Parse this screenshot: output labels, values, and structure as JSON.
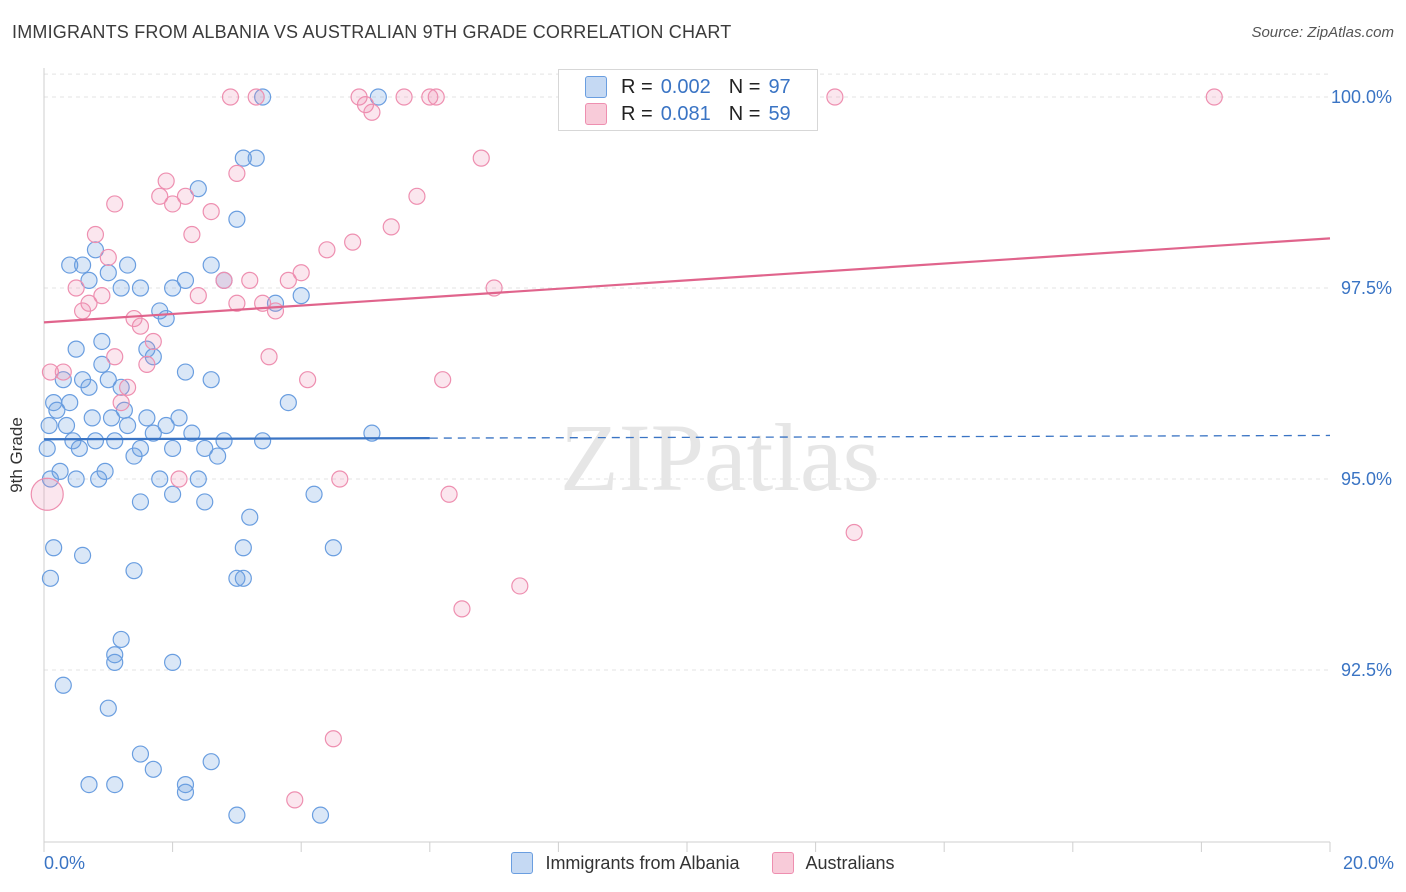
{
  "title": "IMMIGRANTS FROM ALBANIA VS AUSTRALIAN 9TH GRADE CORRELATION CHART",
  "source": "Source: ZipAtlas.com",
  "watermark": "ZIPatlas",
  "legend_top": [
    {
      "r_label": "R =",
      "r_value": "0.002",
      "n_label": "N =",
      "n_value": "97"
    },
    {
      "r_label": "R =",
      "r_value": "0.081",
      "n_label": "N =",
      "n_value": "59"
    }
  ],
  "chart_data": {
    "type": "scatter",
    "title": "IMMIGRANTS FROM ALBANIA VS AUSTRALIAN 9TH GRADE CORRELATION CHART",
    "xlabel": "",
    "ylabel": "9th Grade",
    "xlim": [
      0,
      20
    ],
    "ylim": [
      90.0,
      100.3
    ],
    "x_tick_labels": [
      "0.0%",
      "20.0%"
    ],
    "y_ticks": [
      92.5,
      95.0,
      97.5,
      100.0
    ],
    "y_tick_labels": [
      "92.5%",
      "95.0%",
      "97.5%",
      "100.0%"
    ],
    "colors": {
      "albania": "#6a9ee0",
      "australians": "#ee8fb0",
      "albania_line": "#3a74c4",
      "australians_line": "#e0648c"
    },
    "series": [
      {
        "name": "Immigrants from Albania",
        "R": 0.002,
        "N": 97,
        "trend": {
          "x0": 0,
          "y0": 95.52,
          "x1": 20,
          "y1": 95.57,
          "solid_until_x": 6.0
        },
        "points": [
          [
            0.05,
            95.4
          ],
          [
            0.08,
            95.7
          ],
          [
            0.1,
            95.0
          ],
          [
            0.15,
            96.0
          ],
          [
            0.2,
            95.9
          ],
          [
            0.25,
            95.1
          ],
          [
            0.3,
            96.3
          ],
          [
            0.35,
            95.7
          ],
          [
            0.4,
            96.0
          ],
          [
            0.45,
            95.5
          ],
          [
            0.5,
            95.0
          ],
          [
            0.55,
            95.4
          ],
          [
            0.6,
            96.3
          ],
          [
            0.7,
            96.2
          ],
          [
            0.75,
            95.8
          ],
          [
            0.8,
            95.5
          ],
          [
            0.85,
            95.0
          ],
          [
            0.9,
            96.5
          ],
          [
            0.95,
            95.1
          ],
          [
            1.0,
            96.3
          ],
          [
            1.05,
            95.8
          ],
          [
            1.1,
            95.5
          ],
          [
            1.2,
            96.2
          ],
          [
            1.25,
            95.9
          ],
          [
            1.3,
            95.7
          ],
          [
            1.4,
            95.3
          ],
          [
            1.5,
            95.4
          ],
          [
            1.6,
            95.8
          ],
          [
            1.7,
            95.6
          ],
          [
            1.8,
            95.0
          ],
          [
            1.9,
            95.7
          ],
          [
            2.0,
            95.4
          ],
          [
            2.1,
            95.8
          ],
          [
            2.2,
            96.4
          ],
          [
            2.3,
            95.6
          ],
          [
            2.4,
            95.0
          ],
          [
            2.5,
            95.4
          ],
          [
            2.6,
            96.3
          ],
          [
            2.7,
            95.3
          ],
          [
            2.8,
            95.5
          ],
          [
            0.4,
            97.8
          ],
          [
            0.6,
            97.8
          ],
          [
            0.7,
            97.6
          ],
          [
            0.8,
            98.0
          ],
          [
            1.0,
            97.7
          ],
          [
            1.2,
            97.5
          ],
          [
            1.3,
            97.8
          ],
          [
            1.5,
            97.5
          ],
          [
            1.6,
            96.7
          ],
          [
            1.7,
            96.6
          ],
          [
            1.8,
            97.2
          ],
          [
            1.9,
            97.1
          ],
          [
            2.0,
            97.5
          ],
          [
            2.2,
            97.6
          ],
          [
            2.4,
            98.8
          ],
          [
            2.6,
            97.8
          ],
          [
            2.8,
            97.6
          ],
          [
            3.1,
            99.2
          ],
          [
            3.3,
            99.2
          ],
          [
            3.4,
            100.0
          ],
          [
            3.0,
            98.4
          ],
          [
            3.6,
            97.3
          ],
          [
            3.8,
            96.0
          ],
          [
            4.0,
            97.4
          ],
          [
            2.5,
            94.7
          ],
          [
            1.5,
            94.7
          ],
          [
            2.0,
            94.8
          ],
          [
            3.2,
            94.5
          ],
          [
            3.1,
            94.1
          ],
          [
            4.2,
            94.8
          ],
          [
            4.5,
            94.1
          ],
          [
            3.4,
            95.5
          ],
          [
            0.1,
            93.7
          ],
          [
            0.15,
            94.1
          ],
          [
            0.6,
            94.0
          ],
          [
            1.4,
            93.8
          ],
          [
            3.0,
            93.7
          ],
          [
            3.1,
            93.7
          ],
          [
            1.2,
            92.9
          ],
          [
            1.1,
            92.6
          ],
          [
            1.1,
            92.7
          ],
          [
            0.3,
            92.3
          ],
          [
            2.0,
            92.6
          ],
          [
            1.0,
            92.0
          ],
          [
            1.5,
            91.4
          ],
          [
            1.7,
            91.2
          ],
          [
            0.7,
            91.0
          ],
          [
            1.1,
            91.0
          ],
          [
            2.2,
            91.0
          ],
          [
            2.2,
            90.9
          ],
          [
            2.6,
            91.3
          ],
          [
            3.0,
            90.6
          ],
          [
            4.3,
            90.6
          ],
          [
            5.1,
            95.6
          ],
          [
            5.2,
            100.0
          ],
          [
            0.5,
            96.7
          ],
          [
            0.9,
            96.8
          ]
        ]
      },
      {
        "name": "Australians",
        "R": 0.081,
        "N": 59,
        "trend": {
          "x0": 0,
          "y0": 97.05,
          "x1": 20,
          "y1": 98.15
        },
        "points": [
          [
            0.05,
            94.8
          ],
          [
            0.1,
            96.4
          ],
          [
            0.3,
            96.4
          ],
          [
            0.5,
            97.5
          ],
          [
            0.6,
            97.2
          ],
          [
            0.7,
            97.3
          ],
          [
            0.8,
            98.2
          ],
          [
            0.9,
            97.4
          ],
          [
            1.0,
            97.9
          ],
          [
            1.1,
            96.6
          ],
          [
            1.2,
            96.0
          ],
          [
            1.3,
            96.2
          ],
          [
            1.4,
            97.1
          ],
          [
            1.5,
            97.0
          ],
          [
            1.6,
            96.5
          ],
          [
            1.7,
            96.8
          ],
          [
            1.8,
            98.7
          ],
          [
            1.9,
            98.9
          ],
          [
            2.0,
            98.6
          ],
          [
            2.2,
            98.7
          ],
          [
            2.3,
            98.2
          ],
          [
            2.4,
            97.4
          ],
          [
            2.6,
            98.5
          ],
          [
            2.8,
            97.6
          ],
          [
            3.0,
            97.3
          ],
          [
            3.2,
            97.6
          ],
          [
            3.4,
            97.3
          ],
          [
            3.5,
            96.6
          ],
          [
            3.6,
            97.2
          ],
          [
            3.8,
            97.6
          ],
          [
            4.0,
            97.7
          ],
          [
            4.1,
            96.3
          ],
          [
            4.4,
            98.0
          ],
          [
            4.6,
            95.0
          ],
          [
            4.8,
            98.1
          ],
          [
            4.9,
            100.0
          ],
          [
            5.0,
            99.9
          ],
          [
            5.1,
            99.8
          ],
          [
            5.4,
            98.3
          ],
          [
            5.6,
            100.0
          ],
          [
            5.8,
            98.7
          ],
          [
            6.0,
            100.0
          ],
          [
            6.1,
            100.0
          ],
          [
            6.2,
            96.3
          ],
          [
            6.3,
            94.8
          ],
          [
            6.5,
            93.3
          ],
          [
            6.8,
            99.2
          ],
          [
            7.0,
            97.5
          ],
          [
            7.4,
            93.6
          ],
          [
            1.1,
            98.6
          ],
          [
            3.0,
            99.0
          ],
          [
            2.9,
            100.0
          ],
          [
            3.3,
            100.0
          ],
          [
            12.3,
            100.0
          ],
          [
            12.6,
            94.3
          ],
          [
            18.2,
            100.0
          ],
          [
            4.5,
            91.6
          ],
          [
            3.9,
            90.8
          ],
          [
            2.1,
            95.0
          ]
        ]
      }
    ]
  },
  "legend_bottom": [
    {
      "label": "Immigrants from Albania"
    },
    {
      "label": "Australians"
    }
  ]
}
